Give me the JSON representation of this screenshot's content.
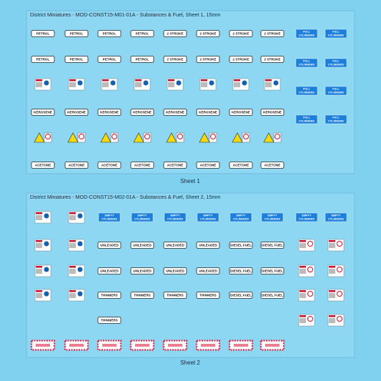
{
  "sheets": [
    {
      "title": "District Miniatures - MOD-CONST15-M01-01A - Substances & Fuel, Sheet 1, 15mm",
      "caption": "Sheet 1",
      "labels": [
        [
          "PETROL",
          "PETROL",
          "PETROL",
          "PETROL",
          "2 STROKE",
          "2 STROKE",
          "2 STROKE",
          "2 STROKE"
        ],
        [
          "PETROL",
          "PETROL",
          "PETROL",
          "PETROL",
          "2 STROKE",
          "2 STROKE",
          "2 STROKE",
          "2 STROKE"
        ],
        [
          "KEROSENE",
          "KEROSENE",
          "KEROSENE",
          "KEROSENE",
          "KEROSENE",
          "KEROSENE",
          "KEROSENE",
          "KEROSENE"
        ],
        [
          "ACETONE",
          "ACETONE",
          "ACETONE",
          "ACETONE",
          "ACETONE",
          "ACETONE",
          "ACETONE",
          "ACETONE"
        ]
      ],
      "cylinders": [
        [
          "FULL",
          "CYLINDERS"
        ],
        [
          "FULL",
          "CYLINDERS"
        ],
        [
          "FULL",
          "CYLINDERS"
        ],
        [
          "FULL",
          "CYLINDERS"
        ],
        [
          "FULL",
          "CYLINDERS"
        ],
        [
          "FULL",
          "CYLINDERS"
        ],
        [
          "FULL",
          "CYLINDERS"
        ],
        [
          "FULL",
          "CYLINDERS"
        ]
      ]
    },
    {
      "title": "District Miniatures - MOD-CONST15-M02-01A - Substances & Fuel, Sheet 2, 15mm",
      "caption": "Sheet 2",
      "labels": [
        [
          "UNLEADED",
          "UNLEADED",
          "UNLEADED",
          "UNLEADED",
          "DIESEL FUEL",
          "DIESEL FUEL"
        ],
        [
          "UNLEADED",
          "UNLEADED",
          "UNLEADED",
          "UNLEADED",
          "DIESEL FUEL",
          "DIESEL FUEL"
        ],
        [
          "THINNERS",
          "THINNERS",
          "THINNERS",
          "THINNERS",
          "DIESEL FUEL",
          "DIESEL FUEL"
        ],
        [
          "THINNERS"
        ]
      ],
      "cylinders": [
        [
          "EMPTY",
          "CYLINDERS"
        ],
        [
          "EMPTY",
          "CYLINDERS"
        ],
        [
          "EMPTY",
          "CYLINDERS"
        ],
        [
          "EMPTY",
          "CYLINDERS"
        ],
        [
          "EMPTY",
          "CYLINDERS"
        ],
        [
          "EMPTY",
          "CYLINDERS"
        ],
        [
          "EMPTY",
          "CYLINDERS"
        ],
        [
          "EMPTY",
          "CYLINDERS"
        ]
      ]
    }
  ]
}
